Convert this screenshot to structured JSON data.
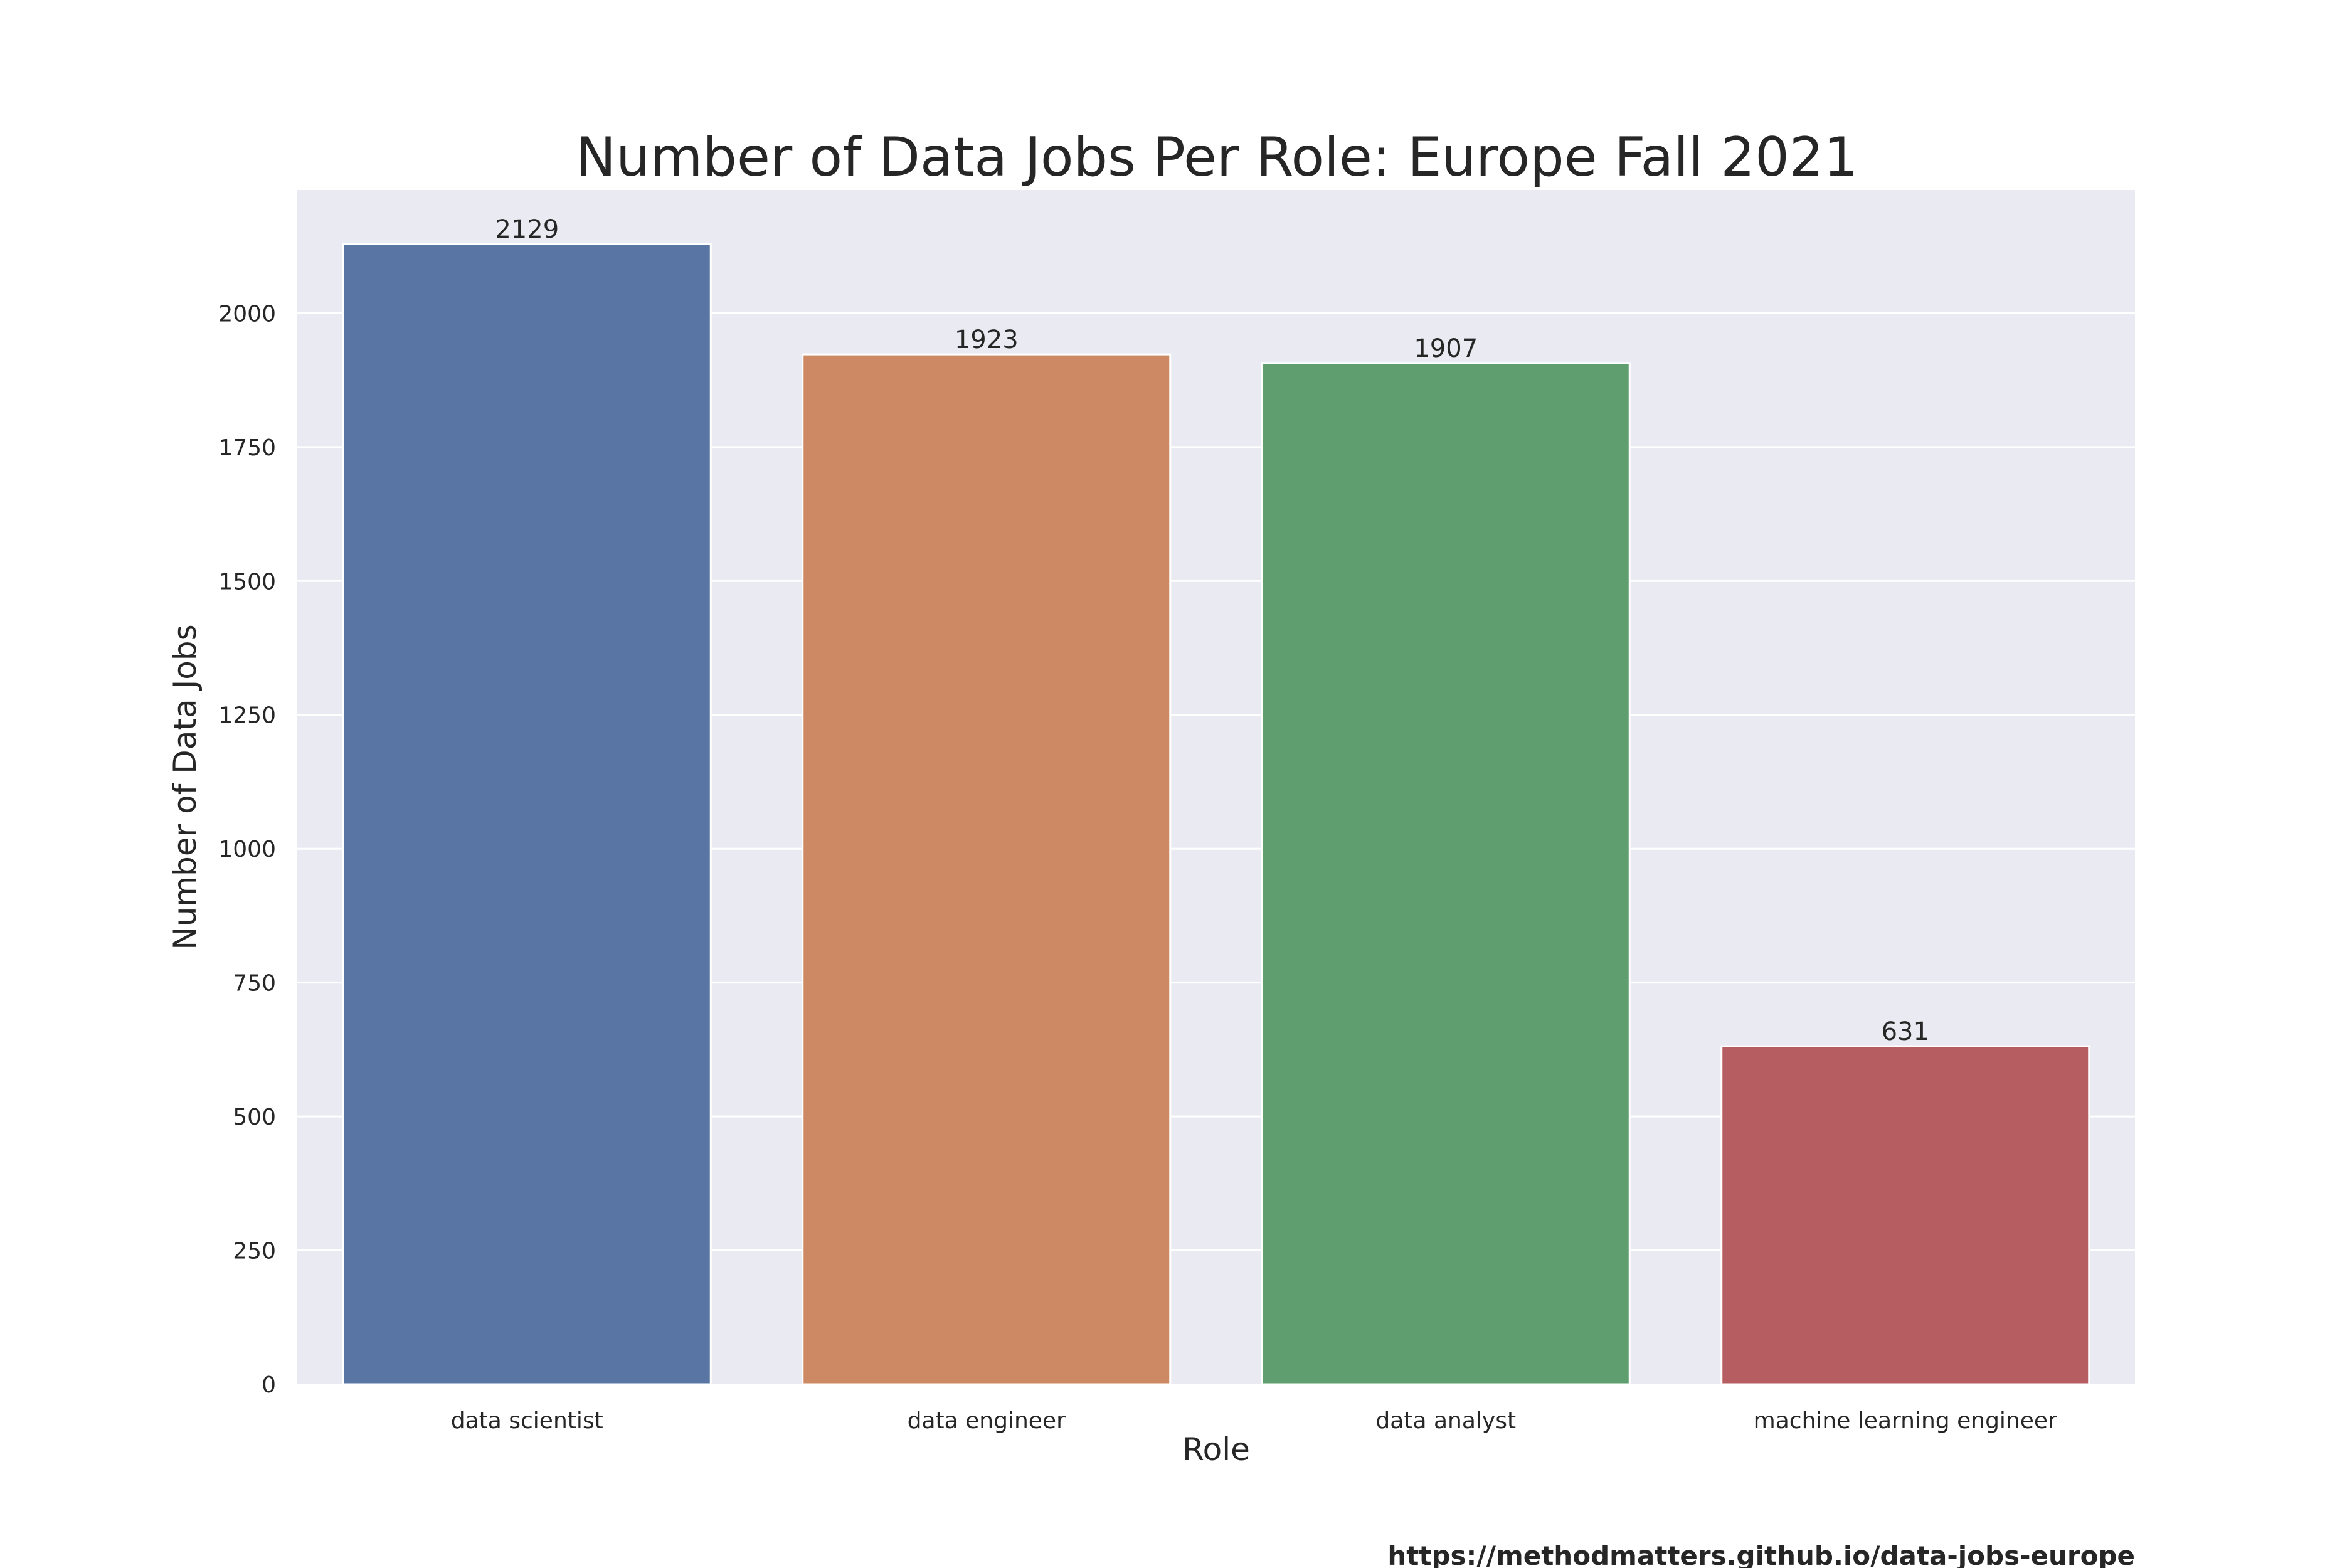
{
  "chart_data": {
    "type": "bar",
    "title": "Number of Data Jobs Per Role: Europe Fall 2021",
    "xlabel": "Role",
    "ylabel": "Number of Data Jobs",
    "categories": [
      "data scientist",
      "data engineer",
      "data analyst",
      "machine learning engineer"
    ],
    "values": [
      2129,
      1923,
      1907,
      631
    ],
    "data_labels": [
      "2129",
      "1923",
      "1907",
      "631"
    ],
    "colors": [
      "#5875a4",
      "#cc8963",
      "#5f9e6e",
      "#b55d60"
    ],
    "ylim": [
      0,
      2230
    ],
    "yticks": [
      0,
      250,
      500,
      750,
      1000,
      1250,
      1500,
      1750,
      2000
    ],
    "grid": true,
    "background": "#eaeaf2"
  },
  "footer": {
    "source_url": "https://methodmatters.github.io/data-jobs-europe"
  }
}
